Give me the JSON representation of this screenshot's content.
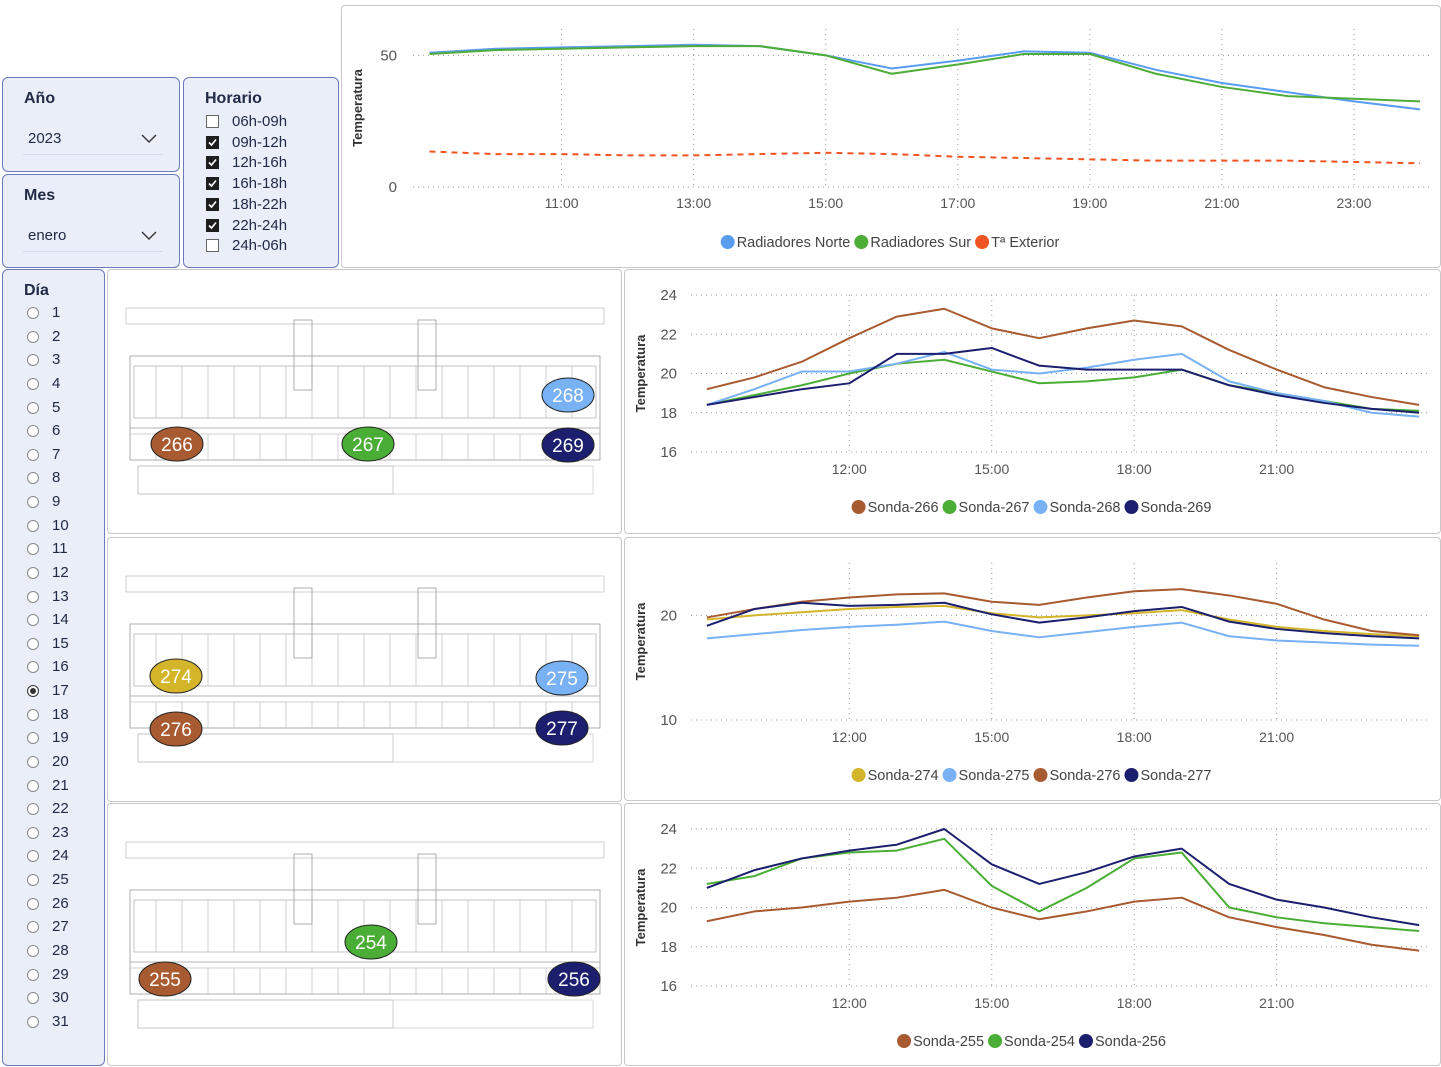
{
  "filters": {
    "year": {
      "label": "Año",
      "value": "2023"
    },
    "month": {
      "label": "Mes",
      "value": "enero"
    },
    "schedule": {
      "label": "Horario",
      "options": [
        {
          "label": "06h-09h",
          "checked": false
        },
        {
          "label": "09h-12h",
          "checked": true
        },
        {
          "label": "12h-16h",
          "checked": true
        },
        {
          "label": "16h-18h",
          "checked": true
        },
        {
          "label": "18h-22h",
          "checked": true
        },
        {
          "label": "22h-24h",
          "checked": true
        },
        {
          "label": "24h-06h",
          "checked": false
        }
      ]
    },
    "day": {
      "label": "Día",
      "options": [
        "1",
        "2",
        "3",
        "4",
        "5",
        "6",
        "7",
        "8",
        "9",
        "10",
        "11",
        "12",
        "13",
        "14",
        "15",
        "16",
        "17",
        "18",
        "19",
        "20",
        "21",
        "22",
        "23",
        "24",
        "25",
        "26",
        "27",
        "28",
        "29",
        "30",
        "31"
      ],
      "selected": "17"
    }
  },
  "floor_plans": [
    {
      "markers": [
        {
          "label": "266",
          "color": "#a85a30"
        },
        {
          "label": "267",
          "color": "#4aad35"
        },
        {
          "label": "268",
          "color": "#78b1f4"
        },
        {
          "label": "269",
          "color": "#1b1f6e"
        }
      ]
    },
    {
      "markers": [
        {
          "label": "274",
          "color": "#d4b52a"
        },
        {
          "label": "275",
          "color": "#78b1f4"
        },
        {
          "label": "276",
          "color": "#a85a30"
        },
        {
          "label": "277",
          "color": "#1b1f6e"
        }
      ]
    },
    {
      "markers": [
        {
          "label": "254",
          "color": "#4aad35"
        },
        {
          "label": "255",
          "color": "#a85a30"
        },
        {
          "label": "256",
          "color": "#1b1f6e"
        }
      ]
    }
  ],
  "chart_data": [
    {
      "type": "line",
      "y_label": "Temperatura",
      "grid": true,
      "legend": "bottom",
      "x": [
        "09:00",
        "10:00",
        "11:00",
        "12:00",
        "13:00",
        "14:00",
        "15:00",
        "16:00",
        "17:00",
        "18:00",
        "19:00",
        "20:00",
        "21:00",
        "22:00",
        "23:00",
        "24:00"
      ],
      "xlim": [
        "08:45",
        "24:10"
      ],
      "xticks": [
        "11:00",
        "13:00",
        "15:00",
        "17:00",
        "19:00",
        "21:00",
        "23:00"
      ],
      "ylim": [
        0,
        60
      ],
      "yticks": [
        0,
        50
      ],
      "series": [
        {
          "name": "Radiadores Norte",
          "color": "#5a9cf0",
          "values": [
            51,
            52.5,
            53,
            53.5,
            54,
            53.5,
            50,
            45,
            48,
            51.5,
            51,
            44.5,
            39.5,
            36,
            32.5,
            29.5
          ]
        },
        {
          "name": "Radiadores Sur",
          "color": "#4eac38",
          "values": [
            50.5,
            52,
            52.5,
            53,
            53.5,
            53.5,
            50,
            43,
            46.5,
            50.5,
            50.5,
            43,
            38,
            34.5,
            33.5,
            32.5
          ]
        },
        {
          "name": "Tª Exterior",
          "color": "#f05423",
          "dash": true,
          "values": [
            13.5,
            12.5,
            12.5,
            12,
            12,
            12.5,
            13,
            12.5,
            11.5,
            11,
            10.5,
            10,
            10,
            10,
            9.5,
            9
          ]
        }
      ]
    },
    {
      "type": "line",
      "y_label": "Temperatura",
      "grid": true,
      "legend": "bottom",
      "x": [
        "09:00",
        "10:00",
        "11:00",
        "12:00",
        "13:00",
        "14:00",
        "15:00",
        "16:00",
        "17:00",
        "18:00",
        "19:00",
        "20:00",
        "21:00",
        "22:00",
        "23:00",
        "24:00"
      ],
      "xlim": [
        "08:40",
        "24:15"
      ],
      "xticks": [
        "12:00",
        "15:00",
        "18:00",
        "21:00"
      ],
      "ylim": [
        16,
        24
      ],
      "yticks": [
        16,
        18,
        20,
        22,
        24
      ],
      "series": [
        {
          "name": "Sonda-266",
          "color": "#a85a30",
          "values": [
            19.2,
            19.8,
            20.6,
            21.8,
            22.9,
            23.3,
            22.3,
            21.8,
            22.3,
            22.7,
            22.4,
            21.2,
            20.2,
            19.3,
            18.8,
            18.4
          ]
        },
        {
          "name": "Sonda-267",
          "color": "#4aad35",
          "values": [
            18.4,
            18.9,
            19.4,
            20.0,
            20.5,
            20.7,
            20.1,
            19.5,
            19.6,
            19.8,
            20.2,
            19.4,
            19.0,
            18.6,
            18.2,
            18.1
          ]
        },
        {
          "name": "Sonda-268",
          "color": "#78b1f4",
          "values": [
            18.4,
            19.2,
            20.1,
            20.1,
            20.5,
            21.1,
            20.2,
            20.0,
            20.3,
            20.7,
            21.0,
            19.6,
            19.0,
            18.6,
            18.0,
            17.8
          ]
        },
        {
          "name": "Sonda-269",
          "color": "#1b1f6e",
          "values": [
            18.4,
            18.8,
            19.2,
            19.5,
            21.0,
            21.0,
            21.3,
            20.4,
            20.2,
            20.2,
            20.2,
            19.4,
            18.9,
            18.5,
            18.2,
            18.0
          ]
        }
      ]
    },
    {
      "type": "line",
      "y_label": "Temperatura",
      "grid": true,
      "legend": "bottom",
      "x": [
        "09:00",
        "10:00",
        "11:00",
        "12:00",
        "13:00",
        "14:00",
        "15:00",
        "16:00",
        "17:00",
        "18:00",
        "19:00",
        "20:00",
        "21:00",
        "22:00",
        "23:00",
        "24:00"
      ],
      "xlim": [
        "08:40",
        "24:15"
      ],
      "xticks": [
        "12:00",
        "15:00",
        "18:00",
        "21:00"
      ],
      "ylim": [
        10,
        25
      ],
      "yticks": [
        10,
        20
      ],
      "series": [
        {
          "name": "Sonda-274",
          "color": "#d4b52a",
          "values": [
            19.6,
            20.0,
            20.3,
            20.6,
            20.8,
            20.9,
            20.2,
            19.8,
            20.0,
            20.2,
            20.5,
            19.6,
            18.9,
            18.5,
            18.2,
            18.0
          ]
        },
        {
          "name": "Sonda-275",
          "color": "#78b1f4",
          "values": [
            17.8,
            18.2,
            18.6,
            18.9,
            19.1,
            19.4,
            18.5,
            17.9,
            18.4,
            18.9,
            19.3,
            18.0,
            17.6,
            17.4,
            17.2,
            17.1
          ]
        },
        {
          "name": "Sonda-276",
          "color": "#a85a30",
          "values": [
            19.8,
            20.6,
            21.3,
            21.7,
            22.0,
            22.1,
            21.3,
            21.0,
            21.7,
            22.3,
            22.5,
            21.9,
            21.1,
            19.6,
            18.5,
            18.1
          ]
        },
        {
          "name": "Sonda-277",
          "color": "#1b1f6e",
          "values": [
            19.0,
            20.6,
            21.2,
            20.9,
            21.0,
            21.2,
            20.1,
            19.3,
            19.8,
            20.4,
            20.8,
            19.4,
            18.7,
            18.3,
            18.0,
            17.8
          ]
        }
      ]
    },
    {
      "type": "line",
      "y_label": "Temperatura",
      "grid": true,
      "legend": "bottom",
      "x": [
        "09:00",
        "10:00",
        "11:00",
        "12:00",
        "13:00",
        "14:00",
        "15:00",
        "16:00",
        "17:00",
        "18:00",
        "19:00",
        "20:00",
        "21:00",
        "22:00",
        "23:00",
        "24:00"
      ],
      "xlim": [
        "08:40",
        "24:15"
      ],
      "xticks": [
        "12:00",
        "15:00",
        "18:00",
        "21:00"
      ],
      "ylim": [
        16,
        24
      ],
      "yticks": [
        16,
        18,
        20,
        22,
        24
      ],
      "series": [
        {
          "name": "Sonda-255",
          "color": "#a85a30",
          "values": [
            19.3,
            19.8,
            20.0,
            20.3,
            20.5,
            20.9,
            20.0,
            19.4,
            19.8,
            20.3,
            20.5,
            19.5,
            19.0,
            18.6,
            18.1,
            17.8
          ]
        },
        {
          "name": "Sonda-254",
          "color": "#4aad35",
          "values": [
            21.2,
            21.6,
            22.5,
            22.8,
            22.9,
            23.5,
            21.1,
            19.8,
            21.0,
            22.5,
            22.8,
            20.0,
            19.5,
            19.2,
            19.0,
            18.8
          ]
        },
        {
          "name": "Sonda-256",
          "color": "#1b1f6e",
          "values": [
            21.0,
            21.9,
            22.5,
            22.9,
            23.2,
            24.0,
            22.2,
            21.2,
            21.8,
            22.6,
            23.0,
            21.2,
            20.4,
            20.0,
            19.5,
            19.1
          ]
        }
      ]
    }
  ]
}
